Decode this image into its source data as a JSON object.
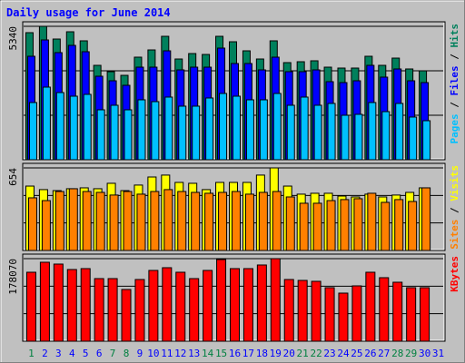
{
  "chart_data": {
    "type": "bar",
    "title": "Daily usage for June 2014",
    "title_color": "#0000ff",
    "legend_separator": " / ",
    "categories": [
      "1",
      "2",
      "3",
      "4",
      "5",
      "6",
      "7",
      "8",
      "9",
      "10",
      "11",
      "12",
      "13",
      "14",
      "15",
      "16",
      "17",
      "18",
      "19",
      "20",
      "21",
      "22",
      "23",
      "24",
      "25",
      "26",
      "27",
      "28",
      "29",
      "30",
      "31"
    ],
    "category_colors": [
      "#008040",
      "#0000ff",
      "#0000ff",
      "#0000ff",
      "#0000ff",
      "#0000ff",
      "#008040",
      "#008040",
      "#0000ff",
      "#0000ff",
      "#0000ff",
      "#0000ff",
      "#0000ff",
      "#008040",
      "#008040",
      "#0000ff",
      "#0000ff",
      "#0000ff",
      "#0000ff",
      "#0000ff",
      "#008040",
      "#008040",
      "#0000ff",
      "#0000ff",
      "#0000ff",
      "#0000ff",
      "#0000ff",
      "#008040",
      "#008040",
      "#0000ff",
      "#0000ff"
    ],
    "panels": [
      {
        "ylim": [
          0,
          5340
        ],
        "yticks": [
          5340
        ],
        "series": [
          {
            "name": "Hits",
            "color": "#00805c",
            "values": [
              5086,
              5340,
              4831,
              5122,
              4759,
              3778,
              3524,
              3378,
              4105,
              4395,
              4940,
              4032,
              4250,
              4214,
              4940,
              4722,
              4359,
              4032,
              4759,
              3887,
              3923,
              3960,
              3705,
              3669,
              3669,
              4141,
              3778,
              4068,
              3633,
              3560,
              null
            ]
          },
          {
            "name": "Files",
            "color": "#0000ff",
            "values": [
              4141,
              4795,
              4287,
              4577,
              4323,
              3342,
              3160,
              2979,
              3705,
              3705,
              4359,
              3596,
              3705,
              3705,
              4468,
              3851,
              3851,
              3596,
              4105,
              3524,
              3524,
              3596,
              3124,
              3088,
              3160,
              3778,
              3306,
              3633,
              3160,
              3088,
              null
            ]
          },
          {
            "name": "Pages",
            "color": "#00c0ff",
            "values": [
              2289,
              2906,
              2688,
              2543,
              2616,
              1998,
              2180,
              1998,
              2398,
              2325,
              2507,
              2144,
              2144,
              2471,
              2652,
              2543,
              2398,
              2398,
              2652,
              2180,
              2507,
              2180,
              2253,
              1780,
              1817,
              2289,
              1925,
              2253,
              1708,
              1562,
              null
            ]
          }
        ]
      },
      {
        "ylim": [
          0,
          654
        ],
        "yticks": [
          654
        ],
        "series": [
          {
            "name": "Visits",
            "color": "#ffff00",
            "values": [
              510,
              482,
              474,
              489,
              496,
              489,
              532,
              474,
              518,
              582,
              597,
              539,
              532,
              482,
              539,
              539,
              539,
              597,
              654,
              510,
              446,
              453,
              453,
              431,
              424,
              446,
              424,
              439,
              460,
              496,
              null
            ]
          },
          {
            "name": "Sites",
            "color": "#ff8000",
            "values": [
              417,
              395,
              467,
              489,
              467,
              460,
              439,
              467,
              446,
              467,
              482,
              467,
              460,
              453,
              460,
              467,
              446,
              460,
              467,
              424,
              374,
              374,
              395,
              403,
              410,
              453,
              381,
              403,
              388,
              496,
              null
            ]
          }
        ]
      },
      {
        "ylim": [
          0,
          178070
        ],
        "yticks": [
          178070
        ],
        "series": [
          {
            "name": "KBytes",
            "color": "#ff0000",
            "values": [
              148732,
              170259,
              166345,
              154603,
              156560,
              135033,
              135033,
              111549,
              133076,
              152646,
              158517,
              148732,
              135033,
              152646,
              176130,
              156560,
              156560,
              164388,
              178070,
              133076,
              131119,
              129162,
              115463,
              103721,
              119377,
              148732,
              136990,
              127205,
              115463,
              115463,
              null
            ]
          }
        ]
      }
    ]
  }
}
